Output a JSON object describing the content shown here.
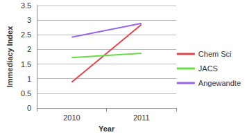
{
  "chart_data": {
    "type": "line",
    "x_label": "Year",
    "y_label": "Immediacy Index",
    "categories": [
      "2010",
      "2011"
    ],
    "series": [
      {
        "name": "Chem Sci",
        "color": "#e8424c",
        "values": [
          0.88,
          2.85
        ]
      },
      {
        "name": "JACS",
        "color": "#66dd44",
        "values": [
          1.72,
          1.87
        ]
      },
      {
        "name": "Angewandte",
        "color": "#9a66e8",
        "values": [
          2.42,
          2.89
        ]
      }
    ],
    "ylim": [
      0,
      3.5
    ],
    "yticks": [
      0,
      0.5,
      1,
      1.5,
      2,
      2.5,
      3,
      3.5
    ],
    "grid": true,
    "legend": "right",
    "marker": "none"
  }
}
